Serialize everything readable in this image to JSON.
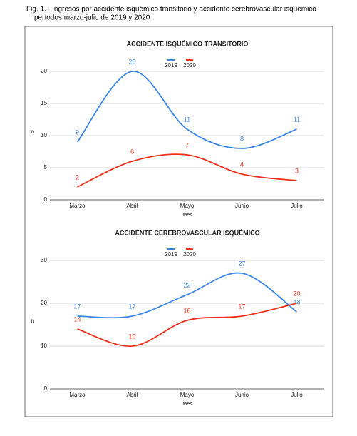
{
  "caption": [
    "Fig. 1.– Ingresos por accidente isquémico transitorio y accidente cerebrovascular isquémico",
    "períodos marzo-julio de 2019 y 2020"
  ],
  "chart_data": [
    {
      "type": "line",
      "title": "ACCIDENTE ISQUÉMICO TRANSITORIO",
      "x_label": "Mes",
      "y_label": "n",
      "categories": [
        "Marzo",
        "Abril",
        "Mayo",
        "Junio",
        "Julio"
      ],
      "series": [
        {
          "name": "2019",
          "color": "#3b86e8",
          "values": [
            9,
            20,
            11,
            8,
            11
          ]
        },
        {
          "name": "2020",
          "color": "#f0301c",
          "values": [
            2,
            6,
            7,
            4,
            3
          ]
        }
      ],
      "ylim": [
        0,
        20
      ],
      "yticks": [
        0,
        5,
        10,
        15,
        20
      ],
      "grid": true,
      "legend": "top"
    },
    {
      "type": "line",
      "title": "ACCIDENTE CEREBROVASCULAR ISQUÉMICO",
      "x_label": "Mes",
      "y_label": "n",
      "categories": [
        "Marzo",
        "Abril",
        "Mayo",
        "Junio",
        "Julio"
      ],
      "series": [
        {
          "name": "2019",
          "color": "#3b86e8",
          "values": [
            17,
            17,
            22,
            27,
            18
          ]
        },
        {
          "name": "2020",
          "color": "#f0301c",
          "values": [
            14,
            10,
            16,
            17,
            20
          ]
        }
      ],
      "ylim": [
        0,
        30
      ],
      "yticks": [
        0,
        10,
        20,
        30
      ],
      "grid": true,
      "legend": "top"
    }
  ]
}
